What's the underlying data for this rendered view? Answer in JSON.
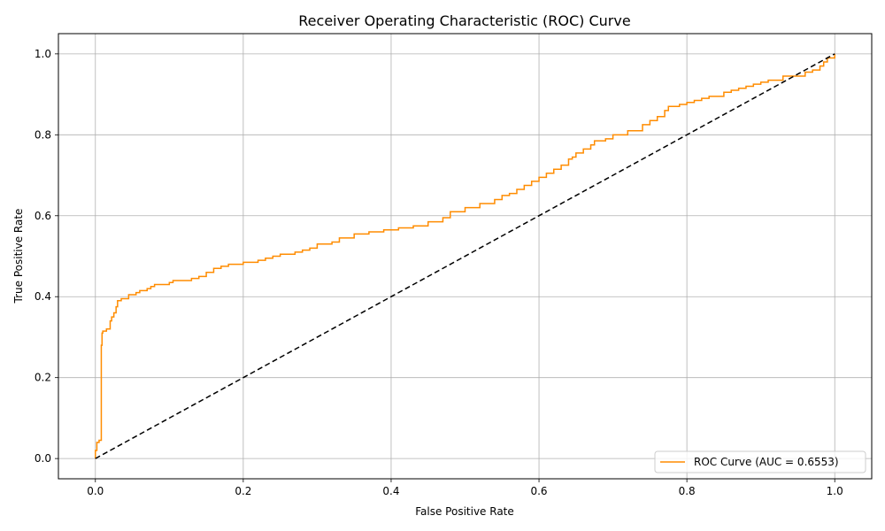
{
  "chart_data": {
    "type": "line",
    "title": "Receiver Operating Characteristic (ROC) Curve",
    "xlabel": "False Positive Rate",
    "ylabel": "True Positive Rate",
    "xlim": [
      -0.05,
      1.05
    ],
    "ylim": [
      -0.05,
      1.05
    ],
    "xticks": [
      0.0,
      0.2,
      0.4,
      0.6,
      0.8,
      1.0
    ],
    "yticks": [
      0.0,
      0.2,
      0.4,
      0.6,
      0.8,
      1.0
    ],
    "xtick_labels": [
      "0.0",
      "0.2",
      "0.4",
      "0.6",
      "0.8",
      "1.0"
    ],
    "ytick_labels": [
      "0.0",
      "0.2",
      "0.4",
      "0.6",
      "0.8",
      "1.0"
    ],
    "grid": true,
    "legend_position": "lower-right",
    "series": [
      {
        "name": "ROC Curve (AUC = 0.6553)",
        "color": "#ff8c00",
        "style": "solid",
        "x": [
          0.0,
          0.0,
          0.002,
          0.002,
          0.005,
          0.005,
          0.008,
          0.008,
          0.009,
          0.009,
          0.01,
          0.01,
          0.015,
          0.015,
          0.02,
          0.022,
          0.025,
          0.028,
          0.03,
          0.033,
          0.035,
          0.04,
          0.045,
          0.05,
          0.055,
          0.06,
          0.065,
          0.07,
          0.075,
          0.08,
          0.085,
          0.09,
          0.1,
          0.105,
          0.11,
          0.13,
          0.14,
          0.15,
          0.16,
          0.17,
          0.18,
          0.19,
          0.2,
          0.22,
          0.23,
          0.24,
          0.25,
          0.27,
          0.28,
          0.29,
          0.3,
          0.32,
          0.33,
          0.35,
          0.37,
          0.39,
          0.41,
          0.43,
          0.45,
          0.47,
          0.48,
          0.5,
          0.52,
          0.54,
          0.55,
          0.56,
          0.57,
          0.58,
          0.59,
          0.6,
          0.61,
          0.62,
          0.63,
          0.64,
          0.645,
          0.65,
          0.66,
          0.67,
          0.675,
          0.69,
          0.7,
          0.72,
          0.74,
          0.75,
          0.76,
          0.77,
          0.775,
          0.79,
          0.8,
          0.81,
          0.82,
          0.83,
          0.85,
          0.86,
          0.87,
          0.88,
          0.89,
          0.9,
          0.91,
          0.93,
          0.95,
          0.96,
          0.97,
          0.98,
          0.985,
          0.99,
          1.0
        ],
        "y": [
          0.0,
          0.02,
          0.04,
          0.04,
          0.045,
          0.045,
          0.07,
          0.28,
          0.29,
          0.31,
          0.315,
          0.315,
          0.32,
          0.32,
          0.34,
          0.35,
          0.36,
          0.375,
          0.39,
          0.39,
          0.395,
          0.395,
          0.405,
          0.405,
          0.41,
          0.415,
          0.415,
          0.42,
          0.425,
          0.43,
          0.43,
          0.43,
          0.435,
          0.44,
          0.44,
          0.445,
          0.45,
          0.46,
          0.47,
          0.475,
          0.48,
          0.48,
          0.485,
          0.49,
          0.495,
          0.5,
          0.505,
          0.51,
          0.515,
          0.52,
          0.53,
          0.535,
          0.545,
          0.555,
          0.56,
          0.565,
          0.57,
          0.575,
          0.585,
          0.595,
          0.61,
          0.62,
          0.63,
          0.64,
          0.65,
          0.655,
          0.665,
          0.675,
          0.685,
          0.695,
          0.705,
          0.715,
          0.725,
          0.74,
          0.745,
          0.755,
          0.765,
          0.775,
          0.785,
          0.79,
          0.8,
          0.81,
          0.825,
          0.835,
          0.845,
          0.86,
          0.87,
          0.875,
          0.88,
          0.885,
          0.89,
          0.895,
          0.905,
          0.91,
          0.915,
          0.92,
          0.925,
          0.93,
          0.935,
          0.945,
          0.945,
          0.955,
          0.96,
          0.97,
          0.98,
          0.99,
          1.0
        ]
      },
      {
        "name": "",
        "color": "#000000",
        "style": "dashed",
        "x": [
          0.0,
          1.0
        ],
        "y": [
          0.0,
          1.0
        ]
      }
    ]
  }
}
